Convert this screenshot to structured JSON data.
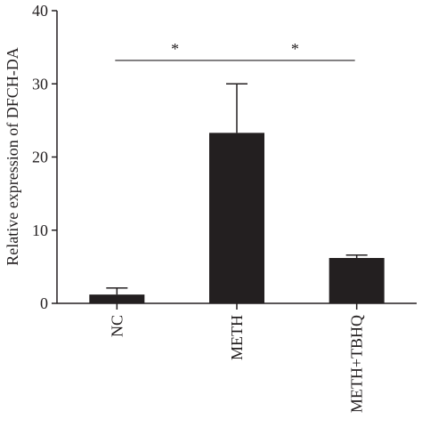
{
  "chart_data": {
    "type": "bar",
    "title": "",
    "xlabel": "",
    "ylabel": "Relative expression of DFCH-DA",
    "categories": [
      "NC",
      "METH",
      "METH+TBHQ"
    ],
    "values": [
      1.2,
      23.3,
      6.2
    ],
    "error": [
      0.9,
      6.7,
      0.4
    ],
    "ylim": [
      0,
      40
    ],
    "yticks": [
      "0",
      "10",
      "20",
      "30",
      "40"
    ],
    "grid": false,
    "legend": "none",
    "bar_color": "#231f20",
    "significance": [
      {
        "from": "NC",
        "to": "METH",
        "label": "*"
      },
      {
        "from": "METH",
        "to": "METH+TBHQ",
        "label": "*"
      }
    ]
  }
}
